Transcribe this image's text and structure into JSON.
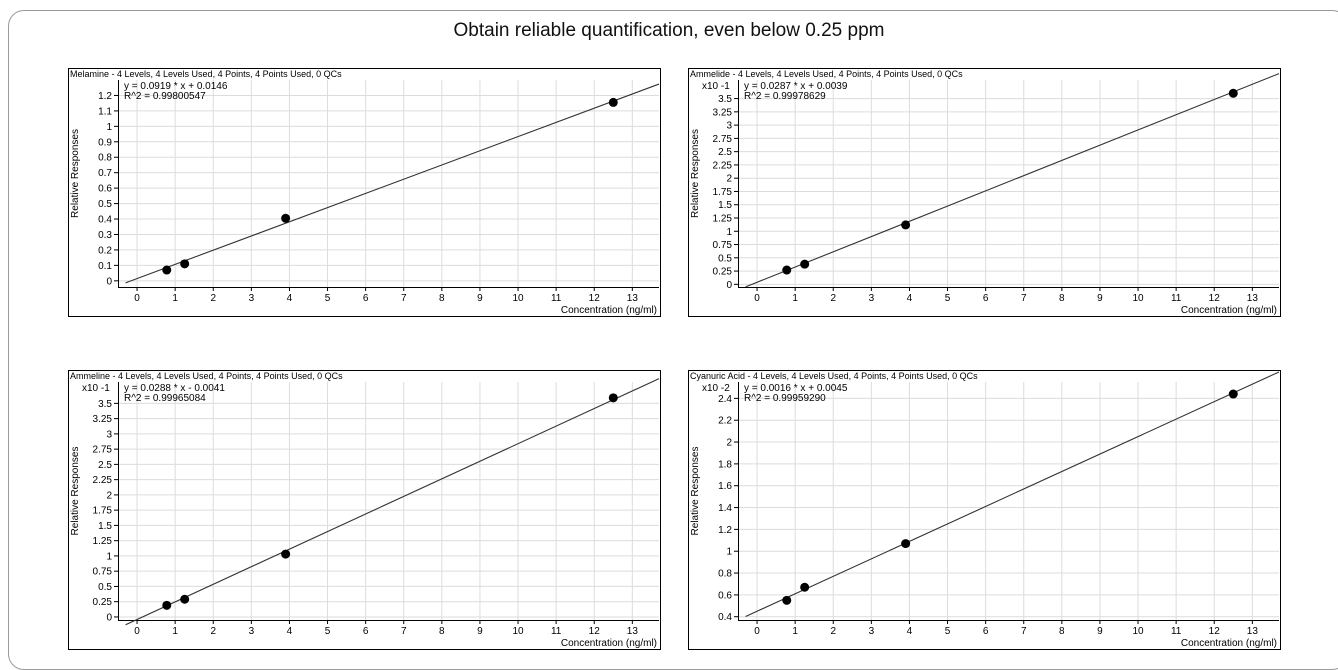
{
  "title": "Obtain reliable quantification, even below 0.25 ppm",
  "chart_data": [
    {
      "type": "scatter",
      "title": "Melamine - 4 Levels, 4 Levels Used, 4 Points, 4 Points Used, 0 QCs",
      "equation": "y = 0.0919 * x + 0.0146",
      "r2": "R^2 = 0.99800547",
      "multiplier": "",
      "xlabel": "Concentration (ng/ml)",
      "ylabel": "Relative Responses",
      "xlim": [
        -0.5,
        13.7
      ],
      "ylim": [
        -0.04,
        1.3
      ],
      "xticks": [
        0,
        1,
        2,
        3,
        4,
        5,
        6,
        7,
        8,
        9,
        10,
        11,
        12,
        13
      ],
      "yticks": [
        0,
        0.1,
        0.2,
        0.3,
        0.4,
        0.5,
        0.6,
        0.7,
        0.8,
        0.9,
        1,
        1.1,
        1.2
      ],
      "points": [
        {
          "x": 0.78,
          "y": 0.07
        },
        {
          "x": 1.25,
          "y": 0.11
        },
        {
          "x": 3.9,
          "y": 0.405
        },
        {
          "x": 12.5,
          "y": 1.155
        }
      ],
      "fit": {
        "slope": 0.0919,
        "intercept": 0.0146
      }
    },
    {
      "type": "scatter",
      "title": "Ammelide - 4 Levels, 4 Levels Used, 4 Points, 4 Points Used, 0 QCs",
      "equation": "y = 0.0287 * x + 0.0039",
      "r2": "R^2 = 0.99978629",
      "multiplier": "x10 -1",
      "xlabel": "Concentration (ng/ml)",
      "ylabel": "Relative Responses",
      "xlim": [
        -0.5,
        13.7
      ],
      "ylim": [
        -0.05,
        3.85
      ],
      "xticks": [
        0,
        1,
        2,
        3,
        4,
        5,
        6,
        7,
        8,
        9,
        10,
        11,
        12,
        13
      ],
      "yticks": [
        0,
        0.25,
        0.5,
        0.75,
        1,
        1.25,
        1.5,
        1.75,
        2,
        2.25,
        2.5,
        2.75,
        3,
        3.25,
        3.5
      ],
      "points": [
        {
          "x": 0.78,
          "y": 0.27
        },
        {
          "x": 1.25,
          "y": 0.38
        },
        {
          "x": 3.9,
          "y": 1.12
        },
        {
          "x": 12.5,
          "y": 3.6
        }
      ],
      "fit": {
        "slope": 0.287,
        "intercept": 0.039
      }
    },
    {
      "type": "scatter",
      "title": "Ammeline - 4 Levels, 4 Levels Used, 4 Points, 4 Points Used, 0 QCs",
      "equation": "y = 0.0288 * x - 0.0041",
      "r2": "R^2 = 0.99965084",
      "multiplier": "x10 -1",
      "xlabel": "Concentration (ng/ml)",
      "ylabel": "Relative Responses",
      "xlim": [
        -0.5,
        13.7
      ],
      "ylim": [
        -0.05,
        3.85
      ],
      "xticks": [
        0,
        1,
        2,
        3,
        4,
        5,
        6,
        7,
        8,
        9,
        10,
        11,
        12,
        13
      ],
      "yticks": [
        0,
        0.25,
        0.5,
        0.75,
        1,
        1.25,
        1.5,
        1.75,
        2,
        2.25,
        2.5,
        2.75,
        3,
        3.25,
        3.5
      ],
      "points": [
        {
          "x": 0.78,
          "y": 0.19
        },
        {
          "x": 1.25,
          "y": 0.29
        },
        {
          "x": 3.9,
          "y": 1.03
        },
        {
          "x": 12.5,
          "y": 3.59
        }
      ],
      "fit": {
        "slope": 0.288,
        "intercept": -0.041
      }
    },
    {
      "type": "scatter",
      "title": "Cyanuric Acid - 4 Levels, 4 Levels Used, 4 Points, 4 Points Used, 0 QCs",
      "equation": "y = 0.0016 * x + 0.0045",
      "r2": "R^2 = 0.99959290",
      "multiplier": "x10 -2",
      "xlabel": "Concentration (ng/ml)",
      "ylabel": "Relative Responses",
      "xlim": [
        -0.5,
        13.7
      ],
      "ylim": [
        0.37,
        2.55
      ],
      "xticks": [
        0,
        1,
        2,
        3,
        4,
        5,
        6,
        7,
        8,
        9,
        10,
        11,
        12,
        13
      ],
      "yticks": [
        0.4,
        0.6,
        0.8,
        1,
        1.2,
        1.4,
        1.6,
        1.8,
        2,
        2.2,
        2.4
      ],
      "points": [
        {
          "x": 0.78,
          "y": 0.55
        },
        {
          "x": 1.25,
          "y": 0.67
        },
        {
          "x": 3.9,
          "y": 1.07
        },
        {
          "x": 12.5,
          "y": 2.44
        }
      ],
      "fit": {
        "slope": 0.16,
        "intercept": 0.45
      }
    }
  ]
}
